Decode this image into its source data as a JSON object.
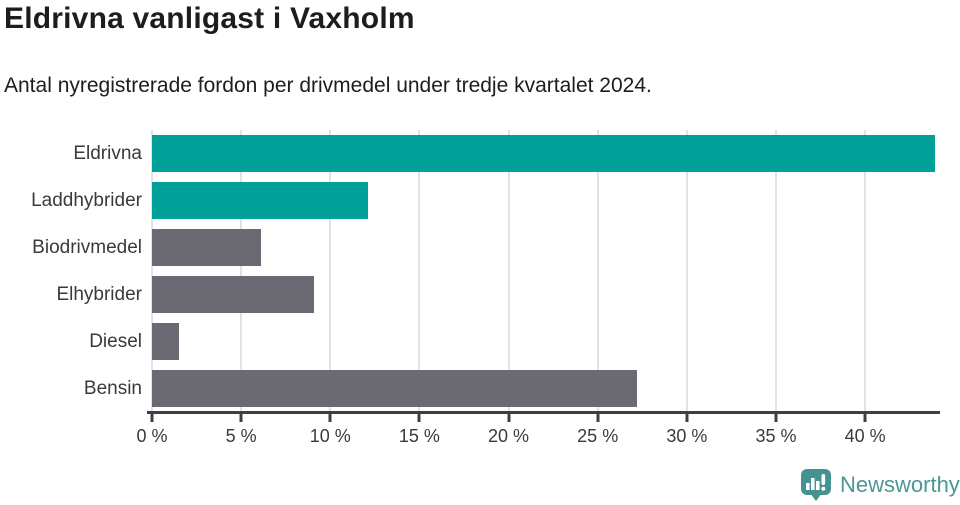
{
  "header": {
    "title": "Eldrivna vanligast i Vaxholm",
    "subtitle": "Antal nyregistrerade fordon per drivmedel under tredje kvartalet 2024."
  },
  "chart_data": {
    "type": "bar",
    "orientation": "horizontal",
    "title": "Eldrivna vanligast i Vaxholm",
    "subtitle": "Antal nyregistrerade fordon per drivmedel under tredje kvartalet 2024.",
    "categories": [
      "Eldrivna",
      "Laddhybrider",
      "Biodrivmedel",
      "Elhybrider",
      "Diesel",
      "Bensin"
    ],
    "values": [
      43.9,
      12.1,
      6.1,
      9.1,
      1.5,
      27.2
    ],
    "unit": "%",
    "xlabel": "",
    "ylabel": "",
    "xlim": [
      0,
      44.2
    ],
    "x_ticks": [
      0,
      5,
      10,
      15,
      20,
      25,
      30,
      35,
      40
    ],
    "x_tick_labels": [
      "0 %",
      "5 %",
      "10 %",
      "15 %",
      "20 %",
      "25 %",
      "30 %",
      "35 %",
      "40 %"
    ],
    "grid": true,
    "legend": false,
    "bar_colors": [
      "#00a099",
      "#00a099",
      "#6b6a72",
      "#6b6a72",
      "#6b6a72",
      "#6b6a72"
    ],
    "colors": {
      "highlight_teal": "#00a099",
      "neutral_gray": "#6b6a72",
      "gridline": "#e2e2e2",
      "axis": "#3f3f3f",
      "text": "#1d1d1d",
      "tick_text": "#3a3a3a"
    }
  },
  "footer": {
    "logo_text": "Newsworthy",
    "logo_color": "#4a9793"
  }
}
